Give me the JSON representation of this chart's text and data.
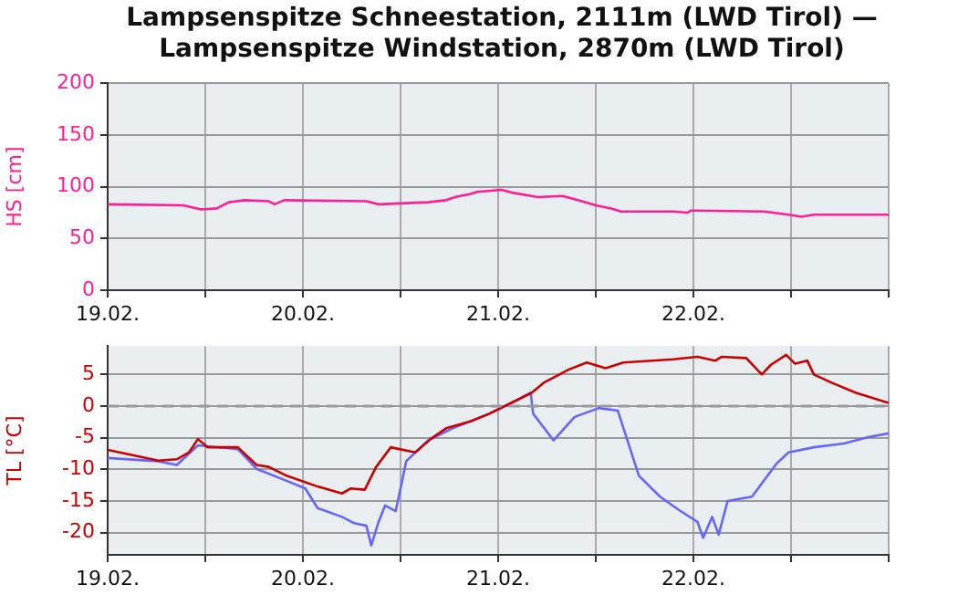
{
  "chart_data": [
    {
      "type": "line",
      "title": "Lampsenspitze Schneestation, 2111m (LWD Tirol) — Lampsenspitze Windstation, 2870m (LWD Tirol)",
      "ylabel": "HS [cm]",
      "grid": true,
      "legend": false,
      "marker": "none",
      "line_style": "solid",
      "xlim": [
        "--02-19",
        "--02-23"
      ],
      "xticks": [
        {
          "value": "--02-19",
          "label": "19.02."
        },
        {
          "value": "--02-19T12:00",
          "label": null
        },
        {
          "value": "--02-20",
          "label": "20.02."
        },
        {
          "value": "--02-20T12:00",
          "label": null
        },
        {
          "value": "--02-21",
          "label": "21.02."
        },
        {
          "value": "--02-21T12:00",
          "label": null
        },
        {
          "value": "--02-22",
          "label": "22.02."
        },
        {
          "value": "--02-22T12:00",
          "label": null
        },
        {
          "value": "--02-23",
          "label": null
        }
      ],
      "ylim": [
        0,
        200
      ],
      "yticks": [
        0,
        50,
        100,
        150,
        200
      ],
      "series": [
        {
          "color": "#ff1e96",
          "x": [
            "--02-19T00:00",
            "--02-19T09:18",
            "--02-19T11:30",
            "--02-19T13:24",
            "--02-19T14:54",
            "--02-19T16:48",
            "--02-19T19:48",
            "--02-19T20:30",
            "--02-19T21:42",
            "--02-20T07:48",
            "--02-20T09:18",
            "--02-20T15:24",
            "--02-20T17:36",
            "--02-20T18:42",
            "--02-20T20:36",
            "--02-20T21:24",
            "--02-21T00:24",
            "--02-21T01:54",
            "--02-21T04:54",
            "--02-21T07:54",
            "--02-21T09:48",
            "--02-21T12:00",
            "--02-21T13:54",
            "--02-21T15:06",
            "--02-21T21:30",
            "--02-21T23:18",
            "--02-21T23:42",
            "--02-22T08:42",
            "--02-22T11:42",
            "--02-22T13:18",
            "--02-22T14:48",
            "--02-23T00:00"
          ],
          "values": [
            83,
            82,
            78,
            79,
            85,
            87,
            86,
            83,
            87,
            86,
            83,
            85,
            87,
            90,
            93,
            95,
            97,
            94,
            90,
            91,
            87,
            82,
            79,
            76,
            76,
            75,
            77,
            76,
            73,
            71,
            73,
            73
          ]
        }
      ]
    },
    {
      "type": "line",
      "ylabel": "TL [°C]",
      "grid": true,
      "legend": false,
      "marker": "none",
      "line_style": "solid",
      "xlim": [
        "--02-19",
        "--02-23"
      ],
      "xticks": [
        {
          "value": "--02-19",
          "label": "19.02."
        },
        {
          "value": "--02-19T12:00",
          "label": null
        },
        {
          "value": "--02-20",
          "label": "20.02."
        },
        {
          "value": "--02-20T12:00",
          "label": null
        },
        {
          "value": "--02-21",
          "label": "21.02."
        },
        {
          "value": "--02-21T12:00",
          "label": null
        },
        {
          "value": "--02-22",
          "label": "22.02."
        },
        {
          "value": "--02-22T12:00",
          "label": null
        },
        {
          "value": "--02-23",
          "label": null
        }
      ],
      "ylim": [
        -23.5,
        9.5
      ],
      "yticks": [
        -20,
        -15,
        -10,
        -5,
        0,
        5
      ],
      "ref_lines": [
        {
          "axis": "y",
          "value": 0,
          "color": "#999999",
          "line_style": "dashed"
        }
      ],
      "series": [
        {
          "color": "#cc0000",
          "x": [
            "--02-19T00:00",
            "--02-19T04:00",
            "--02-19T06:12",
            "--02-19T08:30",
            "--02-19T10:00",
            "--02-19T11:06",
            "--02-19T12:18",
            "--02-19T16:00",
            "--02-19T18:18",
            "--02-19T19:48",
            "--02-19T22:00",
            "--02-20T01:48",
            "--02-20T04:48",
            "--02-20T05:54",
            "--02-20T07:36",
            "--02-20T09:00",
            "--02-20T10:48",
            "--02-20T13:48",
            "--02-20T15:42",
            "--02-20T17:36",
            "--02-20T20:36",
            "--02-20T22:54",
            "--02-21T01:54",
            "--02-21T04:06",
            "--02-21T05:36",
            "--02-21T08:42",
            "--02-21T10:54",
            "--02-21T13:12",
            "--02-21T15:24",
            "--02-21T21:30",
            "--02-22T00:30",
            "--02-22T02:42",
            "--02-22T03:30",
            "--02-22T06:30",
            "--02-22T08:24",
            "--02-22T09:30",
            "--02-22T11:24",
            "--02-22T12:30",
            "--02-22T14:00",
            "--02-22T14:48",
            "--02-22T17:00",
            "--02-22T20:00",
            "--02-23T00:00"
          ],
          "values": [
            -6.9,
            -8.0,
            -8.6,
            -8.4,
            -7.3,
            -5.2,
            -6.5,
            -6.5,
            -9.3,
            -9.6,
            -11,
            -12.7,
            -13.8,
            -13,
            -13.2,
            -9.6,
            -6.5,
            -7.3,
            -5.2,
            -3.5,
            -2.4,
            -1.2,
            0.7,
            2.1,
            3.7,
            5.8,
            6.9,
            6,
            6.9,
            7.4,
            7.8,
            7.2,
            7.8,
            7.6,
            5,
            6.5,
            8.1,
            6.7,
            7.2,
            5,
            3.7,
            2.1,
            0.5
          ]
        },
        {
          "color": "#6666ff",
          "x": [
            "--02-19T00:00",
            "--02-19T06:12",
            "--02-19T08:30",
            "--02-19T11:06",
            "--02-19T16:00",
            "--02-19T18:18",
            "--02-19T22:00",
            "--02-20T00:18",
            "--02-20T01:48",
            "--02-20T04:48",
            "--02-20T06:18",
            "--02-20T07:48",
            "--02-20T08:24",
            "--02-20T09:18",
            "--02-20T10:06",
            "--02-20T11:24",
            "--02-20T12:00",
            "--02-20T12:42",
            "--02-20T15:24",
            "--02-20T18:24",
            "--02-20T22:54",
            "--02-21T01:54",
            "--02-21T04:00",
            "--02-21T04:18",
            "--02-21T06:48",
            "--02-21T09:24",
            "--02-21T12:24",
            "--02-21T14:42",
            "--02-21T17:18",
            "--02-21T19:54",
            "--02-21T22:12",
            "--02-22T00:30",
            "--02-22T01:12",
            "--02-22T02:18",
            "--02-22T03:06",
            "--02-22T04:12",
            "--02-22T07:12",
            "--02-22T10:12",
            "--02-22T11:42",
            "--02-22T14:48",
            "--02-22T18:30",
            "--02-22T21:30",
            "--02-23T00:00"
          ],
          "values": [
            -8.2,
            -8.7,
            -9.3,
            -6.2,
            -6.8,
            -9.9,
            -11.8,
            -13,
            -16.1,
            -17.5,
            -18.5,
            -18.9,
            -22,
            -18.3,
            -15.7,
            -16.6,
            -13,
            -8.7,
            -5.4,
            -3.5,
            -1.2,
            0.7,
            2.1,
            -1.2,
            -5.4,
            -1.7,
            -0.3,
            -0.7,
            -11,
            -14.3,
            -16.4,
            -18.3,
            -20.8,
            -17.5,
            -20.3,
            -15,
            -14.3,
            -9.1,
            -7.3,
            -6.5,
            -5.9,
            -4.9,
            -4.3
          ]
        }
      ]
    }
  ]
}
